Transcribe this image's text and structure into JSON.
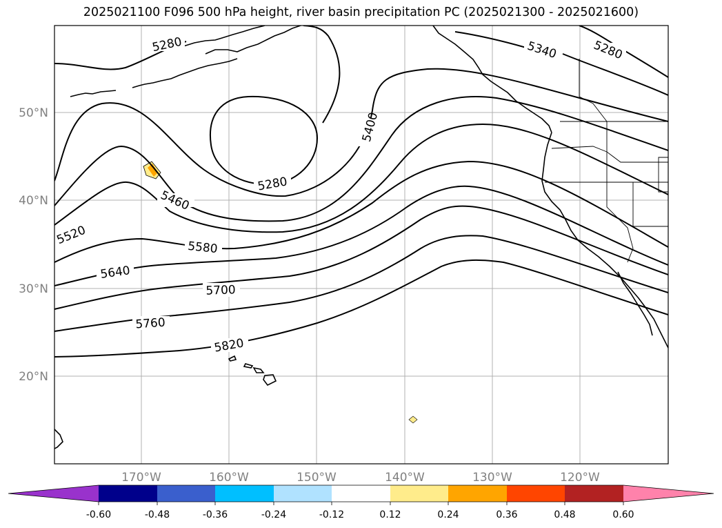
{
  "title": "2025021100 F096 500 hPa height, river basin precipitation PC (2025021300 - 2025021600)",
  "map": {
    "lat_ticks": [
      "50°N",
      "40°N",
      "30°N",
      "20°N"
    ],
    "lon_ticks": [
      "170°W",
      "160°W",
      "150°W",
      "140°W",
      "130°W",
      "120°W"
    ],
    "contour_labels": [
      "5280",
      "5340",
      "5280",
      "5400",
      "5280",
      "5460",
      "5520",
      "5580",
      "5640",
      "5700",
      "5760",
      "5820"
    ],
    "gridlines": true
  },
  "colorbar": {
    "ticks": [
      "-0.60",
      "-0.48",
      "-0.36",
      "-0.24",
      "-0.12",
      "0.12",
      "0.24",
      "0.36",
      "0.48",
      "0.60"
    ],
    "colors": {
      "under": "#9932cc",
      "bins": [
        "#00008b",
        "#3a5fcd",
        "#00bfff",
        "#b0e2ff",
        "#ffffff",
        "#ffec8b",
        "#ffa500",
        "#ff4500",
        "#b22222"
      ],
      "over": "#ff82ab"
    }
  }
}
